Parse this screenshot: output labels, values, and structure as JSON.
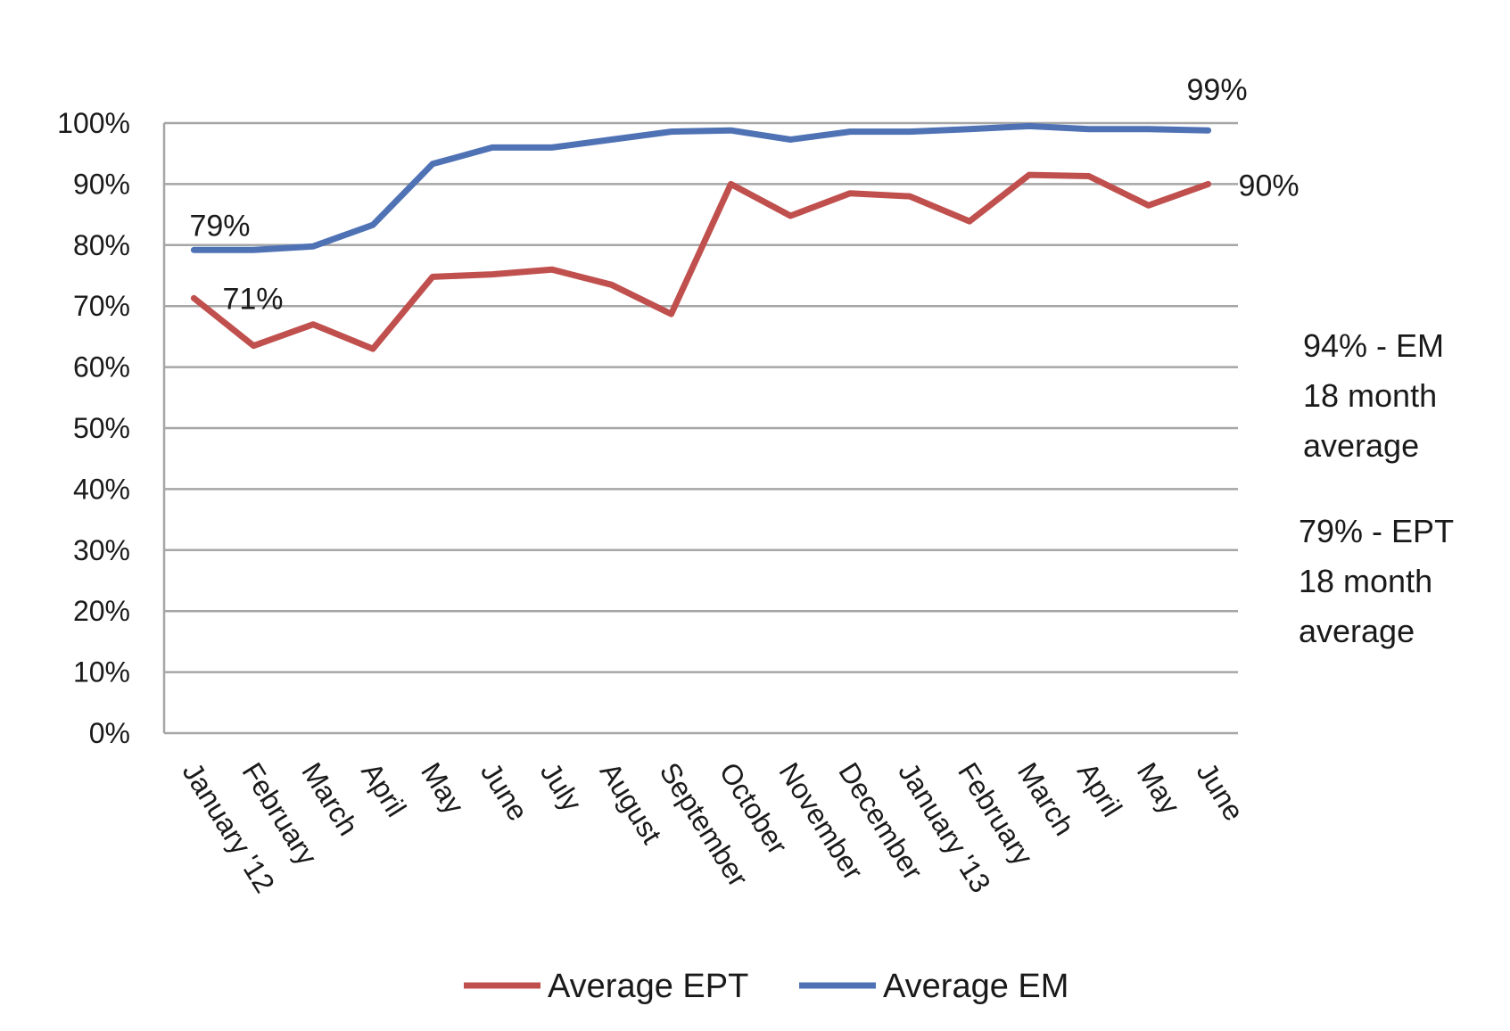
{
  "chart_data": {
    "type": "line",
    "categories": [
      "January '12",
      "February",
      "March",
      "April",
      "May",
      "June",
      "July",
      "August",
      "September",
      "October",
      "November",
      "December",
      "January '13",
      "February",
      "March",
      "April",
      "May",
      "June"
    ],
    "ylim": [
      0,
      100
    ],
    "yticks": [
      0,
      10,
      20,
      30,
      40,
      50,
      60,
      70,
      80,
      90,
      100
    ],
    "ytick_labels": [
      "0%",
      "10%",
      "20%",
      "30%",
      "40%",
      "50%",
      "60%",
      "70%",
      "80%",
      "90%",
      "100%"
    ],
    "grid": true,
    "legend_position": "bottom",
    "series": [
      {
        "name": "Average EPT",
        "color": "#c0504d",
        "values": [
          71.3,
          63.5,
          67.0,
          63.0,
          74.8,
          75.2,
          76.0,
          73.5,
          68.7,
          90.0,
          84.8,
          88.5,
          88.0,
          83.9,
          91.5,
          91.3,
          86.5,
          90.0
        ]
      },
      {
        "name": "Average EM",
        "color": "#4f72b5",
        "values": [
          79.2,
          79.2,
          79.8,
          83.3,
          93.3,
          96.0,
          96.0,
          97.3,
          98.6,
          98.8,
          97.3,
          98.6,
          98.6,
          99.0,
          99.5,
          99.0,
          99.0,
          98.8
        ]
      }
    ],
    "data_labels": [
      {
        "text": "79%",
        "series": 1,
        "index": 0
      },
      {
        "text": "71%",
        "series": 0,
        "index": 0
      },
      {
        "text": "99%",
        "series": 1,
        "index": 17
      },
      {
        "text": "90%",
        "series": 0,
        "index": 17
      }
    ],
    "annotations": [
      {
        "id": "em",
        "lines": [
          "94% - EM",
          "18 month",
          "average"
        ]
      },
      {
        "id": "ept",
        "lines": [
          "79% - EPT",
          "18 month",
          "average"
        ]
      }
    ]
  }
}
